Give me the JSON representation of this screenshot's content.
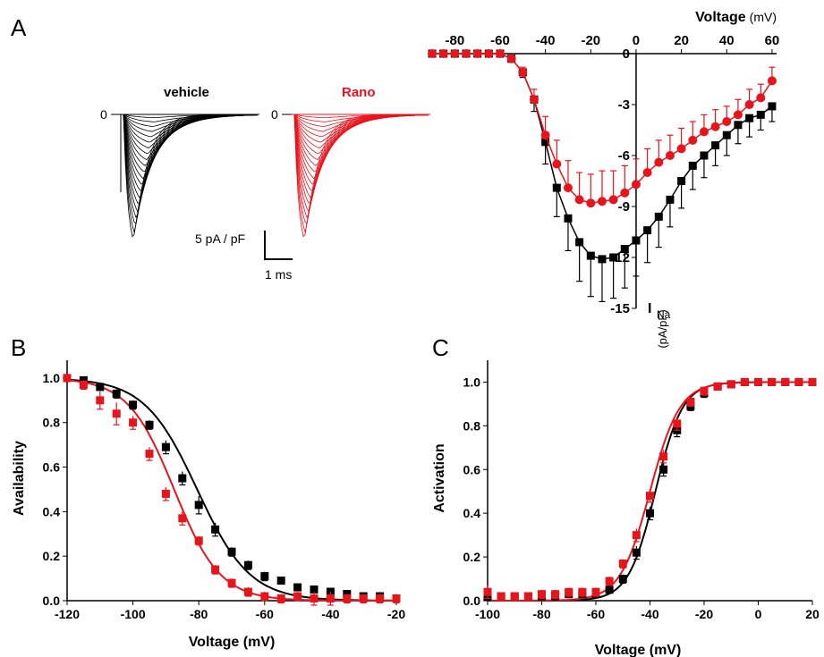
{
  "panel_labels": {
    "a": "A",
    "b": "B",
    "c": "C"
  },
  "colors": {
    "vehicle": "#000000",
    "rano": "#e8141c"
  },
  "traces": {
    "vehicle_label": "vehicle",
    "rano_label": "Rano",
    "zero_label": "0",
    "scale_current": "5 pA / pF",
    "scale_time": "1 ms"
  },
  "chart_data": [
    {
      "panel": "A",
      "type": "line",
      "xlabel": "Voltage",
      "xunit": "(mV)",
      "ylabel_main": "I",
      "ylabel_sub": "Na",
      "ylabel_unit": "(pA/pF)",
      "xlim": [
        -90,
        62
      ],
      "ylim": [
        -15,
        0
      ],
      "xticks": [
        "-80",
        "-60",
        "-40",
        "-20",
        "0",
        "20",
        "40",
        "60"
      ],
      "yticks": [
        "0",
        "-3",
        "-6",
        "-9",
        "-12",
        "-15"
      ],
      "x": [
        -90,
        -85,
        -80,
        -75,
        -70,
        -65,
        -60,
        -55,
        -50,
        -45,
        -40,
        -35,
        -30,
        -25,
        -20,
        -15,
        -10,
        -5,
        0,
        5,
        10,
        15,
        20,
        25,
        30,
        35,
        40,
        45,
        50,
        55,
        60
      ],
      "series": [
        {
          "key": "vehicle",
          "marker": "square",
          "values": [
            0,
            0,
            0,
            0,
            0,
            0,
            0,
            -0.3,
            -1.1,
            -2.7,
            -5.2,
            -7.9,
            -9.7,
            -11.1,
            -11.9,
            -12.1,
            -12.0,
            -11.5,
            -11.0,
            -10.4,
            -9.6,
            -8.6,
            -7.5,
            -6.6,
            -6.0,
            -5.4,
            -4.8,
            -4.2,
            -3.8,
            -3.6,
            -3.1
          ],
          "errors": [
            0,
            0,
            0,
            0,
            0,
            0,
            0,
            0.1,
            0.3,
            0.7,
            1.3,
            1.7,
            1.9,
            2.3,
            2.4,
            2.5,
            2.4,
            2.3,
            2.1,
            1.9,
            1.8,
            1.6,
            1.6,
            1.4,
            1.3,
            1.2,
            1.2,
            1.1,
            1.1,
            0.9,
            0.9
          ]
        },
        {
          "key": "rano",
          "marker": "circle",
          "values": [
            0,
            0,
            0,
            0,
            0,
            0,
            0,
            -0.3,
            -1.1,
            -2.7,
            -4.8,
            -6.5,
            -7.9,
            -8.6,
            -8.8,
            -8.7,
            -8.6,
            -8.2,
            -7.7,
            -7.0,
            -6.4,
            -6.0,
            -5.6,
            -5.1,
            -4.6,
            -4.3,
            -4.0,
            -3.6,
            -3.0,
            -2.6,
            -1.6
          ],
          "errors": [
            0,
            0,
            0,
            0,
            0,
            0,
            0,
            0.1,
            0.3,
            0.6,
            1.1,
            1.4,
            1.6,
            1.6,
            1.7,
            1.8,
            1.7,
            1.6,
            1.5,
            1.4,
            1.3,
            1.2,
            1.2,
            1.1,
            1.0,
            1.0,
            0.9,
            0.9,
            0.9,
            0.8,
            0.8
          ]
        }
      ]
    },
    {
      "panel": "B",
      "type": "scatter",
      "xlabel": "Voltage (mV)",
      "ylabel": "Availability",
      "xlim": [
        -120,
        -20
      ],
      "ylim": [
        0,
        1.08
      ],
      "xticks": [
        "-120",
        "-100",
        "-80",
        "-60",
        "-40",
        "-20"
      ],
      "yticks": [
        "0.0",
        "0.2",
        "0.4",
        "0.6",
        "0.8",
        "1.0"
      ],
      "fits": [
        {
          "key": "vehicle",
          "v_half": -80.5,
          "slope": 8.0
        },
        {
          "key": "rano",
          "v_half": -87.5,
          "slope": 7.0
        }
      ],
      "series": [
        {
          "key": "vehicle",
          "marker": "square",
          "x": [
            -120,
            -115,
            -110,
            -105,
            -100,
            -95,
            -90,
            -85,
            -80,
            -75,
            -70,
            -65,
            -60,
            -55,
            -50,
            -45,
            -40,
            -35,
            -30,
            -25,
            -20
          ],
          "values": [
            1.0,
            0.99,
            0.96,
            0.93,
            0.88,
            0.79,
            0.69,
            0.55,
            0.43,
            0.32,
            0.22,
            0.16,
            0.11,
            0.09,
            0.06,
            0.05,
            0.04,
            0.03,
            0.02,
            0.02,
            0.01
          ],
          "errors": [
            0.01,
            0.01,
            0.01,
            0.02,
            0.02,
            0.02,
            0.03,
            0.03,
            0.04,
            0.03,
            0.02,
            0.02,
            0.02,
            0.01,
            0.01,
            0.01,
            0.01,
            0.01,
            0.01,
            0.01,
            0.01
          ]
        },
        {
          "key": "rano",
          "marker": "square",
          "x": [
            -120,
            -115,
            -110,
            -105,
            -100,
            -95,
            -90,
            -85,
            -80,
            -75,
            -70,
            -65,
            -60,
            -55,
            -50,
            -45,
            -40,
            -35,
            -30,
            -25,
            -20
          ],
          "values": [
            1.0,
            0.97,
            0.9,
            0.84,
            0.8,
            0.66,
            0.48,
            0.37,
            0.27,
            0.14,
            0.08,
            0.04,
            0.02,
            0.01,
            0.02,
            0.01,
            0.01,
            0.01,
            0.01,
            0.01,
            0.01
          ],
          "errors": [
            0.01,
            0.02,
            0.04,
            0.05,
            0.03,
            0.03,
            0.03,
            0.03,
            0.02,
            0.02,
            0.02,
            0.02,
            0.02,
            0.02,
            0.02,
            0.03,
            0.03,
            0.02,
            0.02,
            0.02,
            0.02
          ]
        }
      ]
    },
    {
      "panel": "C",
      "type": "scatter",
      "xlabel": "Voltage (mV)",
      "ylabel": "Activation",
      "xlim": [
        -100,
        20
      ],
      "ylim": [
        0,
        1.1
      ],
      "xticks": [
        "-100",
        "-80",
        "-60",
        "-40",
        "-20",
        "0",
        "20"
      ],
      "yticks": [
        "0.0",
        "0.2",
        "0.4",
        "0.6",
        "0.8",
        "1.0"
      ],
      "fits": [
        {
          "key": "vehicle",
          "v_half": -38.0,
          "slope": 5.0
        },
        {
          "key": "rano",
          "v_half": -40.0,
          "slope": 5.5
        }
      ],
      "series": [
        {
          "key": "vehicle",
          "marker": "square",
          "x": [
            -100,
            -95,
            -90,
            -85,
            -80,
            -75,
            -70,
            -65,
            -60,
            -55,
            -50,
            -45,
            -40,
            -35,
            -30,
            -25,
            -20,
            -15,
            -10,
            -5,
            0,
            5,
            10,
            15,
            20
          ],
          "values": [
            0.02,
            0.02,
            0.02,
            0.02,
            0.02,
            0.02,
            0.03,
            0.03,
            0.03,
            0.05,
            0.1,
            0.22,
            0.4,
            0.6,
            0.78,
            0.89,
            0.95,
            0.98,
            0.99,
            1.0,
            1.0,
            1.0,
            1.0,
            1.0,
            1.0
          ],
          "errors": [
            0.02,
            0.01,
            0.01,
            0.01,
            0.01,
            0.01,
            0.01,
            0.01,
            0.01,
            0.01,
            0.02,
            0.03,
            0.03,
            0.03,
            0.03,
            0.02,
            0.02,
            0.01,
            0.01,
            0.01,
            0.01,
            0.01,
            0.01,
            0.01,
            0.01
          ]
        },
        {
          "key": "rano",
          "marker": "square",
          "x": [
            -100,
            -95,
            -90,
            -85,
            -80,
            -75,
            -70,
            -65,
            -60,
            -55,
            -50,
            -45,
            -40,
            -35,
            -30,
            -25,
            -20,
            -15,
            -10,
            -5,
            0,
            5,
            10,
            15,
            20
          ],
          "values": [
            0.04,
            0.02,
            0.02,
            0.02,
            0.03,
            0.03,
            0.04,
            0.04,
            0.04,
            0.09,
            0.17,
            0.3,
            0.48,
            0.66,
            0.81,
            0.91,
            0.96,
            0.98,
            0.99,
            1.0,
            1.0,
            1.0,
            1.0,
            1.0,
            1.0
          ],
          "errors": [
            0.03,
            0.01,
            0.01,
            0.01,
            0.02,
            0.02,
            0.02,
            0.02,
            0.02,
            0.02,
            0.02,
            0.03,
            0.03,
            0.03,
            0.03,
            0.02,
            0.02,
            0.01,
            0.01,
            0.01,
            0.01,
            0.01,
            0.01,
            0.01,
            0.01
          ]
        }
      ]
    }
  ]
}
